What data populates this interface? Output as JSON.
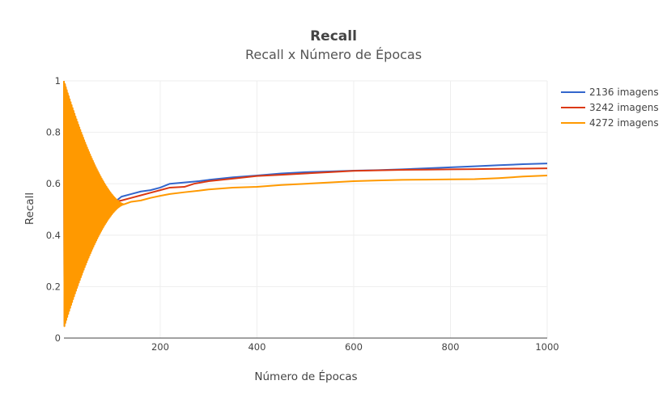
{
  "chart_data": {
    "type": "line",
    "title": "Recall",
    "subtitle": "Recall x Número de Épocas",
    "xlabel": "Número de Épocas",
    "ylabel": "Recall",
    "xlim": [
      1,
      1000
    ],
    "ylim": [
      0,
      1
    ],
    "x_ticks": [
      "200",
      "400",
      "600",
      "800",
      "1000"
    ],
    "y_ticks": [
      "0",
      "0.2",
      "0.4",
      "0.6",
      "0.8",
      "1"
    ],
    "grid": true,
    "legend_position": "top-right",
    "series": [
      {
        "name": "2136 imagens",
        "color": "#3366cc",
        "oscillating_until": 100,
        "x": [
          100,
          110,
          120,
          140,
          160,
          180,
          200,
          220,
          250,
          280,
          300,
          350,
          400,
          450,
          500,
          550,
          600,
          650,
          700,
          750,
          800,
          850,
          900,
          950,
          1000
        ],
        "y": [
          0.52,
          0.535,
          0.55,
          0.56,
          0.57,
          0.575,
          0.585,
          0.6,
          0.605,
          0.61,
          0.615,
          0.625,
          0.632,
          0.64,
          0.645,
          0.648,
          0.651,
          0.653,
          0.656,
          0.66,
          0.664,
          0.668,
          0.672,
          0.676,
          0.679
        ]
      },
      {
        "name": "3242 imagens",
        "color": "#dc3912",
        "oscillating_until": 105,
        "x": [
          105,
          120,
          140,
          160,
          180,
          200,
          220,
          250,
          270,
          300,
          350,
          400,
          450,
          500,
          550,
          600,
          650,
          700,
          750,
          800,
          850,
          900,
          950,
          1000
        ],
        "y": [
          0.53,
          0.535,
          0.545,
          0.555,
          0.565,
          0.575,
          0.585,
          0.588,
          0.6,
          0.61,
          0.62,
          0.63,
          0.635,
          0.64,
          0.645,
          0.65,
          0.652,
          0.654,
          0.655,
          0.656,
          0.657,
          0.658,
          0.659,
          0.66
        ]
      },
      {
        "name": "4272 imagens",
        "color": "#ff9900",
        "oscillating_until": 125,
        "x": [
          125,
          140,
          160,
          180,
          200,
          220,
          250,
          280,
          300,
          350,
          400,
          450,
          500,
          550,
          600,
          650,
          700,
          750,
          800,
          850,
          900,
          950,
          1000
        ],
        "y": [
          0.52,
          0.53,
          0.535,
          0.545,
          0.553,
          0.56,
          0.567,
          0.573,
          0.578,
          0.585,
          0.588,
          0.595,
          0.6,
          0.605,
          0.61,
          0.613,
          0.615,
          0.616,
          0.617,
          0.618,
          0.622,
          0.628,
          0.632
        ]
      }
    ]
  }
}
